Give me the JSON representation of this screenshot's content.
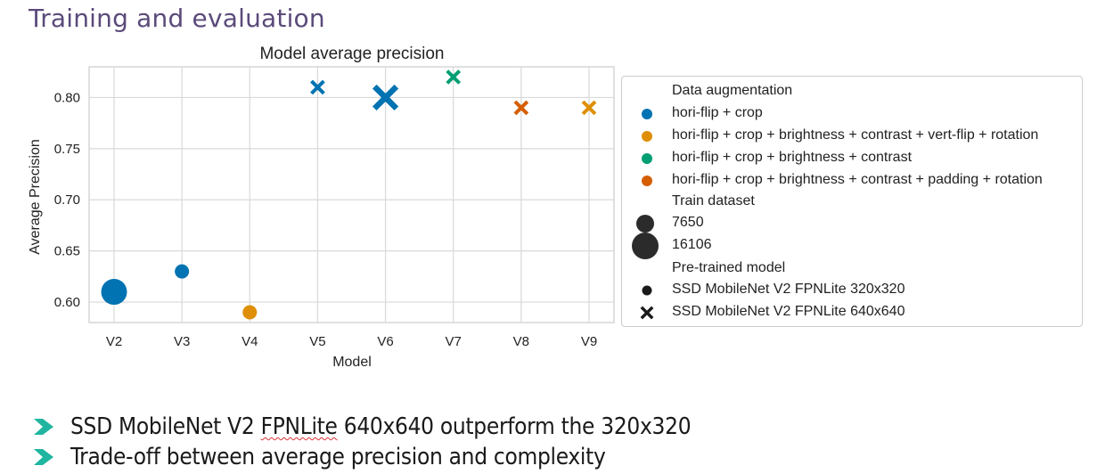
{
  "slide": {
    "title": "Training and evaluation",
    "bullets": [
      {
        "pre": "SSD MobileNet V2 ",
        "flagged": "FPNLite",
        "post": " 640x640 outperform the 320x320"
      },
      {
        "pre": "Trade-off between average precision and complexity",
        "flagged": "",
        "post": ""
      }
    ],
    "accent_color": "#1fb5a0"
  },
  "chart_data": {
    "type": "scatter",
    "title": "Model average precision",
    "xlabel": "Model",
    "ylabel": "Average Precision",
    "categories": [
      "V2",
      "V3",
      "V4",
      "V5",
      "V6",
      "V7",
      "V8",
      "V9"
    ],
    "ylim": [
      0.58,
      0.83
    ],
    "yticks": [
      0.6,
      0.65,
      0.7,
      0.75,
      0.8
    ],
    "ytick_labels": [
      "0.60",
      "0.65",
      "0.70",
      "0.75",
      "0.80"
    ],
    "grid": true,
    "legend_position": "outside-right",
    "points": [
      {
        "model": "V2",
        "y": 0.61,
        "augmentation": 0,
        "dataset": 16106,
        "pretrained": 0
      },
      {
        "model": "V3",
        "y": 0.63,
        "augmentation": 0,
        "dataset": 7650,
        "pretrained": 0
      },
      {
        "model": "V4",
        "y": 0.59,
        "augmentation": 1,
        "dataset": 7650,
        "pretrained": 0
      },
      {
        "model": "V5",
        "y": 0.81,
        "augmentation": 0,
        "dataset": 7650,
        "pretrained": 1
      },
      {
        "model": "V6",
        "y": 0.8,
        "augmentation": 0,
        "dataset": 16106,
        "pretrained": 1
      },
      {
        "model": "V7",
        "y": 0.82,
        "augmentation": 2,
        "dataset": 7650,
        "pretrained": 1
      },
      {
        "model": "V8",
        "y": 0.79,
        "augmentation": 3,
        "dataset": 7650,
        "pretrained": 1
      },
      {
        "model": "V9",
        "y": 0.79,
        "augmentation": 1,
        "dataset": 7650,
        "pretrained": 1
      }
    ],
    "legend": {
      "augmentation_title": "Data augmentation",
      "augmentation": [
        {
          "label": "hori-flip + crop",
          "color": "#0173b2"
        },
        {
          "label": "hori-flip + crop + brightness + contrast + vert-flip + rotation",
          "color": "#de8f05"
        },
        {
          "label": "hori-flip + crop + brightness + contrast",
          "color": "#029e73"
        },
        {
          "label": "hori-flip + crop + brightness + contrast + padding + rotation",
          "color": "#d55e00"
        }
      ],
      "dataset_title": "Train dataset",
      "datasets": [
        {
          "label": "7650",
          "value": 7650
        },
        {
          "label": "16106",
          "value": 16106
        }
      ],
      "pretrained_title": "Pre-trained model",
      "pretrained": [
        {
          "label": "SSD MobileNet V2 FPNLite 320x320",
          "marker": "circle"
        },
        {
          "label": "SSD MobileNet V2 FPNLite 640x640",
          "marker": "x"
        }
      ]
    }
  }
}
